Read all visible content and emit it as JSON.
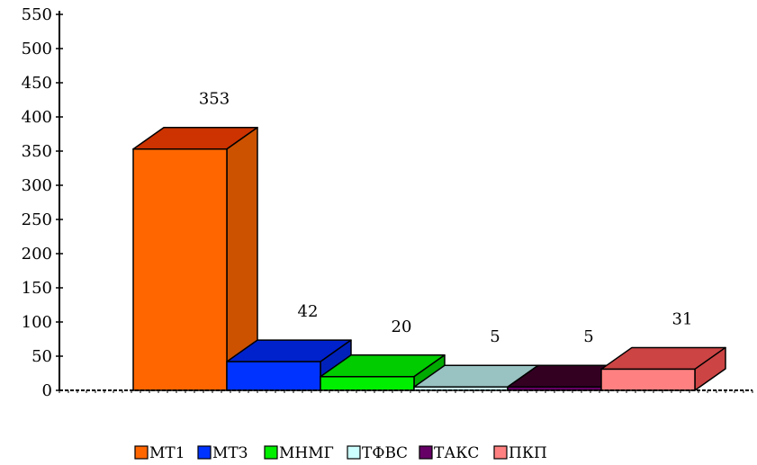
{
  "chart_data": {
    "type": "bar",
    "title": "",
    "xlabel": "",
    "ylabel": "",
    "ylim": [
      0,
      550
    ],
    "yticks": [
      0,
      50,
      100,
      150,
      200,
      250,
      300,
      350,
      400,
      450,
      500,
      550
    ],
    "grid": false,
    "three_d": true,
    "legend_position": "bottom",
    "series": [
      {
        "name": "МТ1",
        "value": 353,
        "label": "353",
        "color": "#FF6600",
        "side": "#CC5200",
        "top": "#CC3300"
      },
      {
        "name": "МТЗ",
        "value": 42,
        "label": "42",
        "color": "#0033FF",
        "side": "#0022BB",
        "top": "#0022CC"
      },
      {
        "name": "МНМГ",
        "value": 20,
        "label": "20",
        "color": "#00EE00",
        "side": "#00AA00",
        "top": "#00CC00"
      },
      {
        "name": "ТФВС",
        "value": 5,
        "label": "5",
        "color": "#CCFFFF",
        "side": "#88BBBB",
        "top": "#99C2C2"
      },
      {
        "name": "ТАКС",
        "value": 5,
        "label": "5",
        "color": "#660066",
        "side": "#330033",
        "top": "#330022"
      },
      {
        "name": "ПКП",
        "value": 31,
        "label": "31",
        "color": "#FF8080",
        "side": "#CC4444",
        "top": "#CC4444"
      }
    ]
  }
}
